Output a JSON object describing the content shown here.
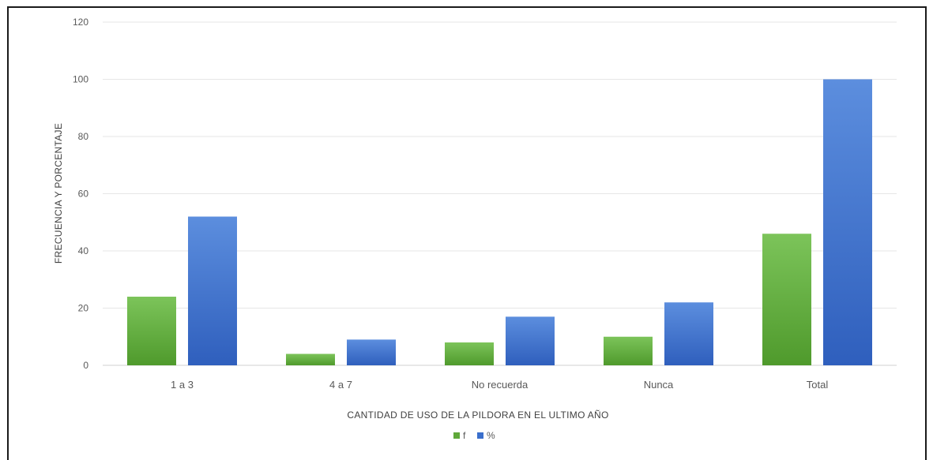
{
  "chart_data": {
    "type": "bar",
    "categories": [
      "1 a 3",
      "4 a 7",
      "No recuerda",
      "Nunca",
      "Total"
    ],
    "series": [
      {
        "name": "f",
        "values": [
          24,
          4,
          8,
          10,
          46
        ],
        "color": "#5fa83a"
      },
      {
        "name": "%",
        "values": [
          52,
          9,
          17,
          22,
          100
        ],
        "color": "#3a6fcc"
      }
    ],
    "xlabel": "CANTIDAD DE USO DE LA PILDORA EN EL ULTIMO AÑO",
    "ylabel": "FRECUENCIA Y PORCENTAJE",
    "ylim": [
      0,
      120
    ],
    "yticks": [
      "0",
      "20",
      "40",
      "60",
      "80",
      "100",
      "120"
    ],
    "grid": true,
    "legend": "bottom"
  }
}
